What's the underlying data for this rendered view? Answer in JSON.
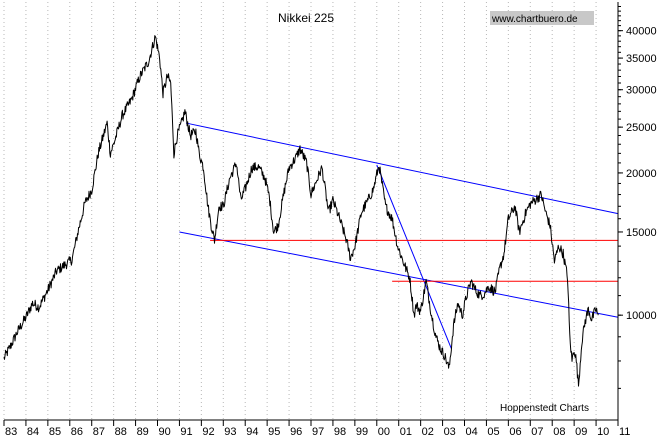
{
  "chart_data": {
    "type": "line",
    "title": "Nikkei 225",
    "watermark": "www.chartbuero.de",
    "source_note": "Hoppenstedt Charts",
    "scale": "log",
    "x_range": [
      1983.0,
      2011.0
    ],
    "ylim": [
      6000,
      46000
    ],
    "y_ticks": [
      {
        "value": 40000,
        "label": "40000"
      },
      {
        "value": 35000,
        "label": "35000"
      },
      {
        "value": 30000,
        "label": "30000"
      },
      {
        "value": 25000,
        "label": "25000"
      },
      {
        "value": 20000,
        "label": "20000"
      },
      {
        "value": 15000,
        "label": "15000"
      },
      {
        "value": 10000,
        "label": "10000"
      }
    ],
    "x_ticks": [
      {
        "value": 1983,
        "label": "83"
      },
      {
        "value": 1984,
        "label": "84"
      },
      {
        "value": 1985,
        "label": "85"
      },
      {
        "value": 1986,
        "label": "86"
      },
      {
        "value": 1987,
        "label": "87"
      },
      {
        "value": 1988,
        "label": "88"
      },
      {
        "value": 1989,
        "label": "89"
      },
      {
        "value": 1990,
        "label": "90"
      },
      {
        "value": 1991,
        "label": "91"
      },
      {
        "value": 1992,
        "label": "92"
      },
      {
        "value": 1993,
        "label": "93"
      },
      {
        "value": 1994,
        "label": "94"
      },
      {
        "value": 1995,
        "label": "95"
      },
      {
        "value": 1996,
        "label": "96"
      },
      {
        "value": 1997,
        "label": "97"
      },
      {
        "value": 1998,
        "label": "98"
      },
      {
        "value": 1999,
        "label": "99"
      },
      {
        "value": 2000,
        "label": "00"
      },
      {
        "value": 2001,
        "label": "01"
      },
      {
        "value": 2002,
        "label": "02"
      },
      {
        "value": 2003,
        "label": "03"
      },
      {
        "value": 2004,
        "label": "04"
      },
      {
        "value": 2005,
        "label": "05"
      },
      {
        "value": 2006,
        "label": "06"
      },
      {
        "value": 2007,
        "label": "07"
      },
      {
        "value": 2008,
        "label": "08"
      },
      {
        "value": 2009,
        "label": "09"
      },
      {
        "value": 2010,
        "label": "10"
      },
      {
        "value": 2011,
        "label": "11"
      }
    ],
    "series": [
      {
        "name": "Nikkei 225",
        "color": "#000000",
        "points": [
          [
            1983.0,
            8100
          ],
          [
            1983.3,
            8600
          ],
          [
            1983.6,
            9200
          ],
          [
            1984.0,
            9900
          ],
          [
            1984.3,
            10600
          ],
          [
            1984.6,
            10400
          ],
          [
            1985.0,
            11300
          ],
          [
            1985.4,
            12400
          ],
          [
            1985.8,
            12800
          ],
          [
            1986.1,
            13100
          ],
          [
            1986.4,
            15200
          ],
          [
            1986.7,
            17300
          ],
          [
            1987.0,
            18400
          ],
          [
            1987.3,
            22000
          ],
          [
            1987.7,
            25500
          ],
          [
            1987.85,
            22000
          ],
          [
            1988.0,
            23000
          ],
          [
            1988.4,
            26500
          ],
          [
            1988.8,
            28500
          ],
          [
            1989.2,
            32000
          ],
          [
            1989.6,
            34500
          ],
          [
            1989.9,
            38900
          ],
          [
            1990.1,
            35000
          ],
          [
            1990.25,
            29500
          ],
          [
            1990.45,
            32000
          ],
          [
            1990.6,
            31000
          ],
          [
            1990.75,
            22000
          ],
          [
            1990.9,
            24000
          ],
          [
            1991.1,
            25500
          ],
          [
            1991.25,
            27000
          ],
          [
            1991.5,
            24000
          ],
          [
            1991.75,
            24500
          ],
          [
            1991.9,
            22000
          ],
          [
            1992.1,
            20500
          ],
          [
            1992.3,
            17000
          ],
          [
            1992.45,
            15500
          ],
          [
            1992.6,
            14400
          ],
          [
            1992.8,
            17000
          ],
          [
            1993.0,
            17000
          ],
          [
            1993.3,
            19500
          ],
          [
            1993.6,
            21000
          ],
          [
            1993.8,
            17500
          ],
          [
            1994.0,
            18500
          ],
          [
            1994.3,
            20500
          ],
          [
            1994.6,
            20600
          ],
          [
            1994.9,
            19500
          ],
          [
            1995.1,
            17800
          ],
          [
            1995.3,
            15000
          ],
          [
            1995.5,
            15500
          ],
          [
            1995.8,
            18500
          ],
          [
            1996.0,
            20500
          ],
          [
            1996.3,
            21500
          ],
          [
            1996.5,
            22500
          ],
          [
            1996.8,
            21000
          ],
          [
            1997.0,
            18000
          ],
          [
            1997.3,
            19500
          ],
          [
            1997.5,
            20500
          ],
          [
            1997.8,
            16500
          ],
          [
            1998.0,
            17500
          ],
          [
            1998.3,
            16000
          ],
          [
            1998.6,
            14500
          ],
          [
            1998.8,
            13200
          ],
          [
            1999.0,
            14000
          ],
          [
            1999.3,
            16500
          ],
          [
            1999.6,
            17500
          ],
          [
            1999.85,
            18500
          ],
          [
            2000.1,
            20800
          ],
          [
            2000.4,
            17000
          ],
          [
            2000.7,
            16000
          ],
          [
            2000.95,
            14000
          ],
          [
            2001.2,
            13000
          ],
          [
            2001.5,
            12000
          ],
          [
            2001.7,
            10000
          ],
          [
            2001.8,
            10500
          ],
          [
            2002.0,
            10200
          ],
          [
            2002.25,
            11800
          ],
          [
            2002.5,
            10000
          ],
          [
            2002.7,
            9000
          ],
          [
            2002.9,
            8500
          ],
          [
            2003.1,
            8200
          ],
          [
            2003.3,
            7700
          ],
          [
            2003.5,
            9500
          ],
          [
            2003.7,
            10600
          ],
          [
            2003.9,
            10000
          ],
          [
            2004.1,
            11000
          ],
          [
            2004.3,
            11800
          ],
          [
            2004.5,
            11300
          ],
          [
            2004.7,
            11000
          ],
          [
            2004.9,
            11100
          ],
          [
            2005.1,
            11500
          ],
          [
            2005.4,
            11200
          ],
          [
            2005.6,
            12500
          ],
          [
            2005.8,
            13500
          ],
          [
            2006.0,
            16000
          ],
          [
            2006.3,
            17000
          ],
          [
            2006.5,
            15000
          ],
          [
            2006.8,
            16500
          ],
          [
            2007.0,
            17200
          ],
          [
            2007.2,
            17500
          ],
          [
            2007.5,
            18000
          ],
          [
            2007.7,
            16500
          ],
          [
            2007.9,
            15500
          ],
          [
            2008.1,
            13000
          ],
          [
            2008.3,
            14000
          ],
          [
            2008.5,
            13500
          ],
          [
            2008.7,
            12000
          ],
          [
            2008.8,
            9000
          ],
          [
            2008.9,
            8000
          ],
          [
            2009.0,
            8500
          ],
          [
            2009.1,
            8000
          ],
          [
            2009.2,
            7100
          ],
          [
            2009.35,
            8800
          ],
          [
            2009.5,
            9700
          ],
          [
            2009.65,
            10300
          ],
          [
            2009.8,
            9800
          ],
          [
            2010.0,
            10300
          ],
          [
            2010.1,
            10000
          ]
        ]
      }
    ],
    "trendlines": [
      {
        "name": "upper-channel-line",
        "color": "#0000ff",
        "from": [
          1991.3,
          25500
        ],
        "to": [
          2011.0,
          16400
        ]
      },
      {
        "name": "lower-channel-line",
        "color": "#0000ff",
        "from": [
          1991.0,
          15000
        ],
        "to": [
          2011.0,
          9900
        ]
      },
      {
        "name": "decline-trend-line",
        "color": "#0000ff",
        "from": [
          2000.0,
          20800
        ],
        "to": [
          2003.4,
          8500
        ]
      },
      {
        "name": "support-line-14400",
        "color": "#ff0000",
        "from": [
          1992.4,
          14400
        ],
        "to": [
          2011.0,
          14400
        ]
      },
      {
        "name": "support-line-11800",
        "color": "#ff0000",
        "from": [
          2000.7,
          11800
        ],
        "to": [
          2011.0,
          11800
        ]
      }
    ]
  }
}
